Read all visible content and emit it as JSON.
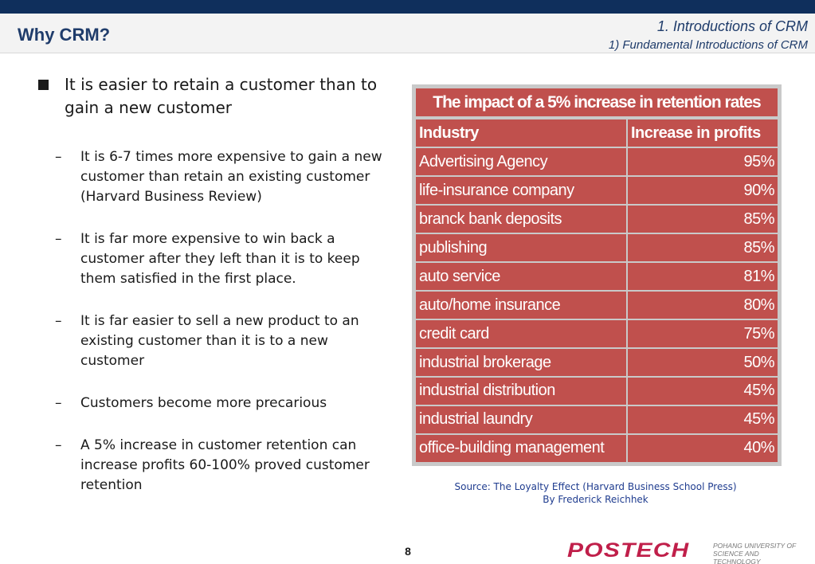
{
  "header": {
    "title": "Why CRM?",
    "section_line1": "1. Introductions of CRM",
    "section_line2": "1) Fundamental Introductions of CRM"
  },
  "content": {
    "main_bullet": "It is easier to retain a customer than to gain a new customer",
    "sub_bullets": [
      "It is 6-7 times more expensive to gain a new customer than retain an existing customer (Harvard Business Review)",
      "It is far more expensive to win back a customer after they left than it is to keep them satisfied in the first place.",
      "It is far easier to sell a new product to an existing customer than it is to a new customer",
      "Customers become more precarious",
      "A 5% increase in customer retention can increase profits 60-100% proved customer retention"
    ]
  },
  "table": {
    "caption": "The impact of a 5% increase in retention rates",
    "headers": [
      "Industry",
      "Increase in profits"
    ],
    "rows": [
      [
        "Advertising Agency",
        "95%"
      ],
      [
        "life-insurance company",
        "90%"
      ],
      [
        "branck bank deposits",
        "85%"
      ],
      [
        "publishing",
        "85%"
      ],
      [
        "auto service",
        "81%"
      ],
      [
        "auto/home insurance",
        "80%"
      ],
      [
        "credit card",
        "75%"
      ],
      [
        "industrial brokerage",
        "50%"
      ],
      [
        "industrial distribution",
        "45%"
      ],
      [
        "industrial laundry",
        "45%"
      ],
      [
        "office-building management",
        "40%"
      ]
    ]
  },
  "source": {
    "line1": "Source: The Loyalty Effect (Harvard Business School Press)",
    "line2": "By Frederick Reichhek"
  },
  "footer": {
    "page_number": "8",
    "logo_text": "POSTECH",
    "university_line1": "POHANG UNIVERSITY OF",
    "university_line2": "SCIENCE AND TECHNOLOGY"
  },
  "colors": {
    "navy_bar": "#0f2f5c",
    "title_blue": "#1f3c6b",
    "table_red": "#c0504d",
    "source_blue": "#1f3c8f",
    "logo_red": "#c01f4a"
  }
}
